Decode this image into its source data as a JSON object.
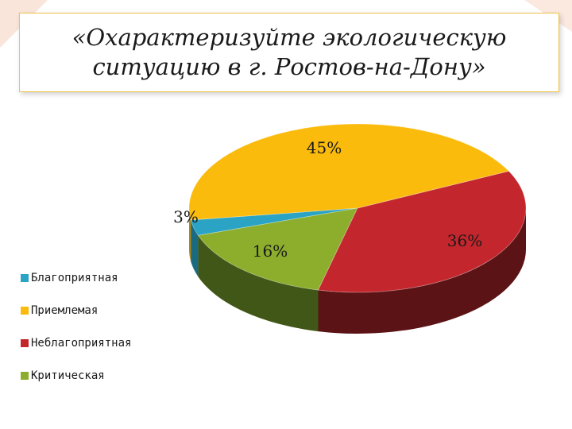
{
  "title": "«Охарактеризуйте экологическую ситуацию в г. Ростов-на-Дону»",
  "chart_data": {
    "type": "pie",
    "categories": [
      "Благоприятная",
      "Приемлемая",
      "Неблагоприятная",
      "Критическая"
    ],
    "values": [
      3,
      45,
      36,
      16
    ],
    "labels": [
      "3%",
      "45%",
      "36%",
      "16%"
    ],
    "colors": [
      "#2aa3c4",
      "#fbbb0c",
      "#c3262c",
      "#8cae2c"
    ],
    "side_colors": [
      "#1a6a82",
      "#b5860a",
      "#5c1316",
      "#415718"
    ],
    "legend_position": "left"
  }
}
